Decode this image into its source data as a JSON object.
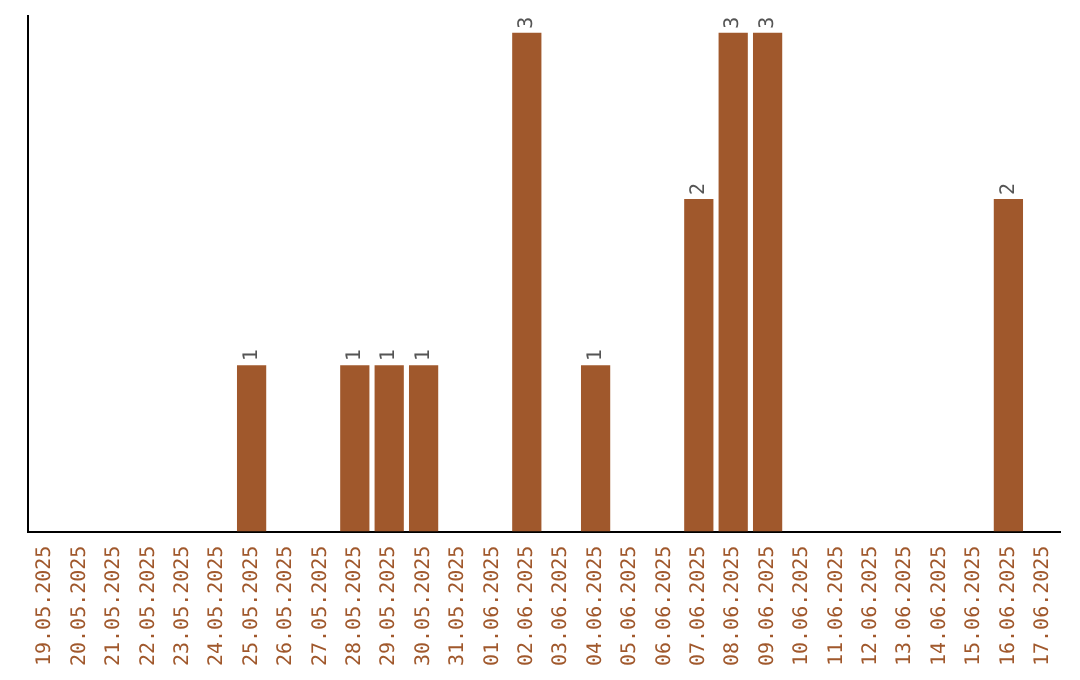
{
  "chart_data": {
    "type": "bar",
    "categories": [
      "19.05.2025",
      "20.05.2025",
      "21.05.2025",
      "22.05.2025",
      "23.05.2025",
      "24.05.2025",
      "25.05.2025",
      "26.05.2025",
      "27.05.2025",
      "28.05.2025",
      "29.05.2025",
      "30.05.2025",
      "31.05.2025",
      "01.06.2025",
      "02.06.2025",
      "03.06.2025",
      "04.06.2025",
      "05.06.2025",
      "06.06.2025",
      "07.06.2025",
      "08.06.2025",
      "09.06.2025",
      "10.06.2025",
      "11.06.2025",
      "12.06.2025",
      "13.06.2025",
      "14.06.2025",
      "15.06.2025",
      "16.06.2025",
      "17.06.2025"
    ],
    "values": [
      0,
      0,
      0,
      0,
      0,
      0,
      1,
      0,
      0,
      1,
      1,
      1,
      0,
      0,
      3,
      0,
      1,
      0,
      0,
      2,
      3,
      3,
      0,
      0,
      0,
      0,
      0,
      0,
      2,
      0
    ],
    "value_labels": [
      null,
      null,
      null,
      null,
      null,
      null,
      "1",
      null,
      null,
      "1",
      "1",
      "1",
      null,
      null,
      "3",
      null,
      "1",
      null,
      null,
      "2",
      "3",
      "3",
      null,
      null,
      null,
      null,
      null,
      null,
      "2",
      null
    ],
    "color": "#a0582c",
    "ylim": [
      0,
      3.1
    ],
    "tick_labels": "x",
    "grid": false,
    "legend": false
  }
}
